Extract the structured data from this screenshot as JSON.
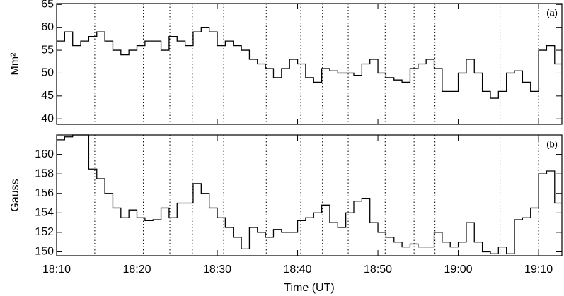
{
  "chart_data": [
    {
      "type": "step",
      "ylabel": "Mm²",
      "panel_label": "(a)",
      "x": [
        1090,
        1091,
        1092,
        1093,
        1094,
        1095,
        1096,
        1097,
        1098,
        1099,
        1100,
        1101,
        1102,
        1103,
        1104,
        1105,
        1106,
        1107,
        1108,
        1109,
        1110,
        1111,
        1112,
        1113,
        1114,
        1115,
        1116,
        1117,
        1118,
        1119,
        1120,
        1121,
        1122,
        1123,
        1124,
        1125,
        1126,
        1127,
        1128,
        1129,
        1130,
        1131,
        1132,
        1133,
        1134,
        1135,
        1136,
        1137,
        1138,
        1139,
        1140,
        1141,
        1142,
        1143,
        1144,
        1145,
        1146,
        1147,
        1148,
        1149,
        1150,
        1151,
        1152
      ],
      "series": [
        {
          "color": "#000000",
          "values": [
            57,
            59,
            56,
            57,
            58,
            59,
            57,
            55,
            54,
            55,
            56,
            57,
            57,
            55,
            58,
            57,
            56,
            59,
            60,
            59,
            56,
            57,
            56,
            55,
            53,
            52,
            51,
            49,
            51,
            53,
            52,
            49,
            48,
            51,
            50.5,
            50,
            50,
            49.5,
            52,
            53,
            50,
            49,
            48.5,
            48,
            51,
            52,
            53,
            51,
            46,
            46,
            50,
            53,
            50,
            46,
            44.5,
            46,
            50,
            50.5,
            48,
            46,
            55,
            56,
            52
          ]
        }
      ],
      "xlim": [
        1090,
        1152.9
      ],
      "ylim": [
        38.8,
        65.2
      ],
      "xticks": [
        1090,
        1100,
        1110,
        1120,
        1130,
        1140,
        1150
      ],
      "yticks": [
        40,
        45,
        50,
        55,
        60,
        65
      ],
      "event_lines": [
        1094.75,
        1100.8,
        1104.1,
        1106.9,
        1110.8,
        1116.1,
        1120.4,
        1123.1,
        1126.3,
        1130.9,
        1134.5,
        1137.1,
        1140.7,
        1145.2,
        1150.0
      ]
    },
    {
      "type": "step",
      "ylabel": "Gauss",
      "panel_label": "(b)",
      "xlabel": "Time (UT)",
      "x": [
        1090,
        1091,
        1092,
        1093,
        1094,
        1095,
        1096,
        1097,
        1098,
        1099,
        1100,
        1101,
        1102,
        1103,
        1104,
        1105,
        1106,
        1107,
        1108,
        1109,
        1110,
        1111,
        1112,
        1113,
        1114,
        1115,
        1116,
        1117,
        1118,
        1119,
        1120,
        1121,
        1122,
        1123,
        1124,
        1125,
        1126,
        1127,
        1128,
        1129,
        1130,
        1131,
        1132,
        1133,
        1134,
        1135,
        1136,
        1137,
        1138,
        1139,
        1140,
        1141,
        1142,
        1143,
        1144,
        1145,
        1146,
        1147,
        1148,
        1149,
        1150,
        1151,
        1152
      ],
      "series": [
        {
          "color": "#000000",
          "values": [
            161.5,
            161.8,
            162,
            162,
            158.5,
            157.5,
            156,
            154.5,
            153.5,
            154.3,
            153.5,
            153.2,
            153.3,
            154.5,
            153.5,
            155,
            155,
            157,
            156,
            154.5,
            153.5,
            152.5,
            151.5,
            150.3,
            152.5,
            152,
            151.5,
            152.3,
            152,
            152,
            153.2,
            153.5,
            154,
            154.8,
            153,
            152.5,
            154,
            155.2,
            155.5,
            153,
            152,
            151.5,
            151,
            150.5,
            150.8,
            150.5,
            150.5,
            152,
            151,
            150.5,
            151,
            153,
            151,
            150,
            149.8,
            150.5,
            149.8,
            153.3,
            153.5,
            154.5,
            158,
            158.3,
            155
          ]
        }
      ],
      "xlim": [
        1090,
        1152.9
      ],
      "ylim": [
        149.6,
        162
      ],
      "xticks": [
        {
          "value": 1090,
          "label": "18:10"
        },
        {
          "value": 1100,
          "label": "18:20"
        },
        {
          "value": 1110,
          "label": "18:30"
        },
        {
          "value": 1120,
          "label": "18:40"
        },
        {
          "value": 1130,
          "label": "18:50"
        },
        {
          "value": 1140,
          "label": "19:00"
        },
        {
          "value": 1150,
          "label": "19:10"
        }
      ],
      "yticks": [
        150,
        152,
        154,
        156,
        158,
        160
      ],
      "event_lines": [
        1094.75,
        1100.8,
        1104.1,
        1106.9,
        1110.8,
        1116.1,
        1120.4,
        1123.1,
        1126.3,
        1130.9,
        1134.5,
        1137.1,
        1140.7,
        1145.2,
        1150.0
      ]
    }
  ]
}
